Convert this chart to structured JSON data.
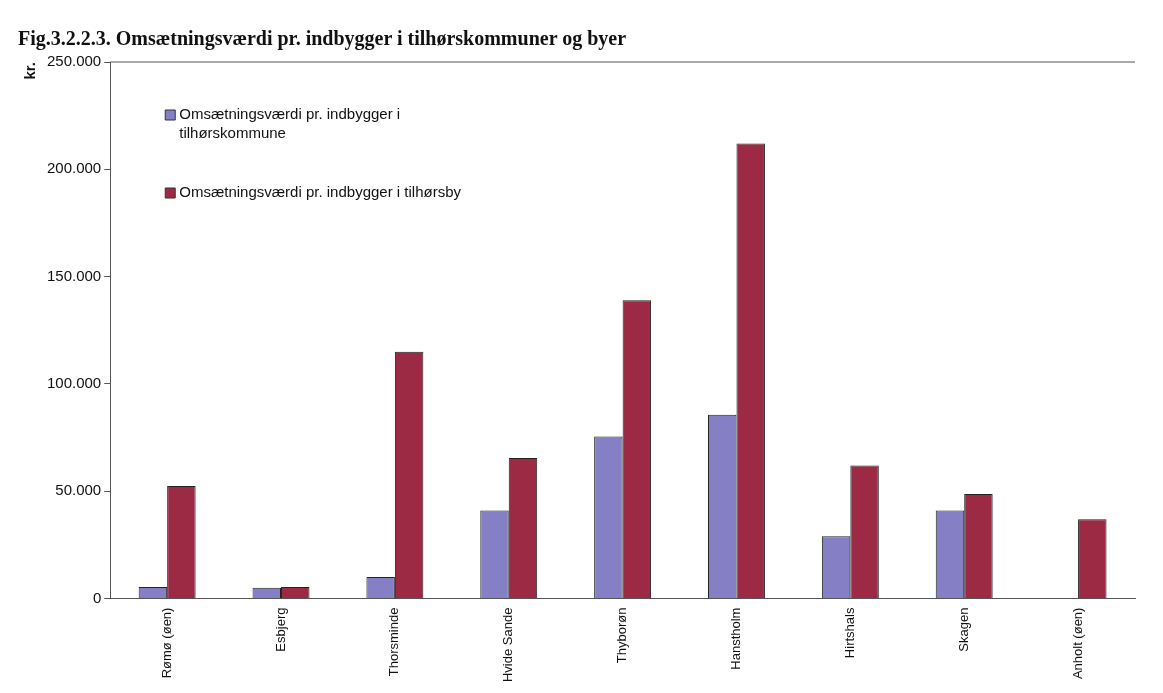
{
  "chart_data": {
    "type": "bar",
    "title": "Fig.3.2.2.3. Omsætningsværdi pr. indbygger i tilhørskommuner og byer",
    "ylabel": "kr.",
    "categories": [
      "Rømø (øen)",
      "Esbjerg",
      "Thorsminde",
      "Hvide Sande",
      "Thyborøn",
      "Hanstholm",
      "Hirtshals",
      "Skagen",
      "Anholt (øen)"
    ],
    "series": [
      {
        "name": "Omsætningsværdi pr. indbygger i tilhørskommune",
        "color": "#8580c6",
        "values": [
          5400,
          5000,
          10000,
          41000,
          75500,
          85600,
          29000,
          41000,
          null
        ]
      },
      {
        "name": "Omsætningsværdi pr. indbygger i tilhørsby",
        "color": "#9c2a45",
        "values": [
          52500,
          5400,
          115000,
          65500,
          139000,
          212000,
          62000,
          48700,
          37000
        ]
      }
    ],
    "ylim": [
      0,
      250000
    ],
    "yticks": [
      {
        "value": 0,
        "label": "0"
      },
      {
        "value": 50000,
        "label": "50.000"
      },
      {
        "value": 100000,
        "label": "100.000"
      },
      {
        "value": 150000,
        "label": "150.000"
      },
      {
        "value": 200000,
        "label": "200.000"
      },
      {
        "value": 250000,
        "label": "250.000"
      }
    ],
    "grid": false,
    "legend": "top left"
  }
}
